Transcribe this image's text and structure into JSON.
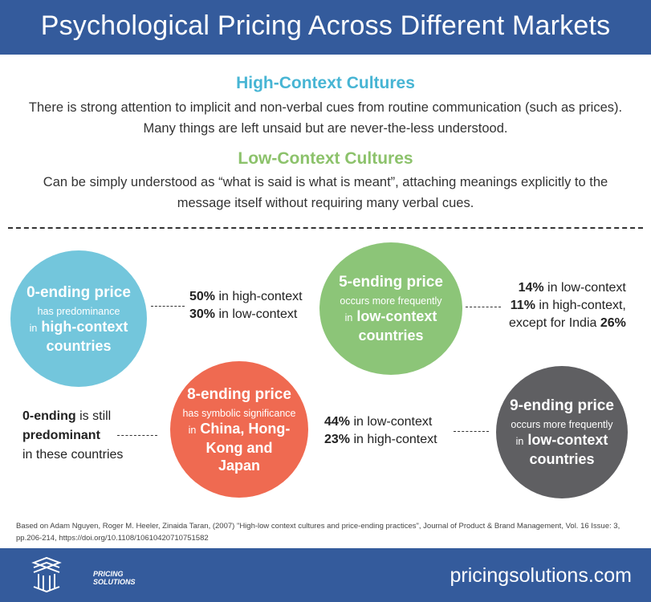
{
  "header": {
    "title": "Psychological Pricing Across Different Markets"
  },
  "intro": {
    "high_context": {
      "heading": "High-Context Cultures",
      "body": "There is strong attention to implicit and non-verbal cues from routine communication (such as prices). Many things are left unsaid but are never-the-less understood."
    },
    "low_context": {
      "heading": "Low-Context Cultures",
      "body": "Can be simply understood as “what is said is what is meant”, attaching meanings explicitly to the message itself without requiring many verbal cues."
    }
  },
  "circles": {
    "zero": {
      "title": "0-ending price",
      "sub": "has predominance",
      "in": "in",
      "target": "high-context countries",
      "color": "#73c6dc"
    },
    "five": {
      "title": "5-ending price",
      "sub": "occurs more frequently",
      "in": "in",
      "target": "low-context countries",
      "color": "#8cc578"
    },
    "eight": {
      "title": "8-ending price",
      "sub": "has symbolic significance",
      "in": "in",
      "target": "China, Hong-Kong and Japan",
      "color": "#ef6a51"
    },
    "nine": {
      "title": "9-ending price",
      "sub": "occurs more frequently",
      "in": "in",
      "target": "low-context countries",
      "color": "#5f5f62"
    }
  },
  "stats": {
    "zero": {
      "a_pct": "50%",
      "a_text": " in high-context",
      "b_pct": "30%",
      "b_text": " in low-context"
    },
    "five": {
      "a_pct": "14%",
      "a_text": " in low-context",
      "b_pct": "11%",
      "b_text": " in high-context,",
      "c_text": "except for India ",
      "c_pct": "26%"
    },
    "eight": {
      "a_bold": "0-ending",
      "a_text": " is still",
      "b_bold": "predominant",
      "c_text": "in these countries"
    },
    "nine": {
      "a_pct": "44%",
      "a_text": " in low-context",
      "b_pct": "23%",
      "b_text": " in high-context"
    }
  },
  "footnote": "Based on Adam Nguyen, Roger M. Heeler, Zinaida Taran, (2007) \"High-low context cultures and price-ending practices\", Journal of Product & Brand Management, Vol. 16 Issue: 3, pp.206-214, https://doi.org/10.1108/10610420710751582",
  "footer": {
    "logo_text": "PRICING SOLUTIONS",
    "logo_line1": "PRICING",
    "logo_line2": "SOLUTIONS",
    "website": "pricingsolutions.com"
  },
  "colors": {
    "brand_blue": "#345b9c",
    "high_context": "#47b5d4",
    "low_context": "#8cc26b"
  }
}
